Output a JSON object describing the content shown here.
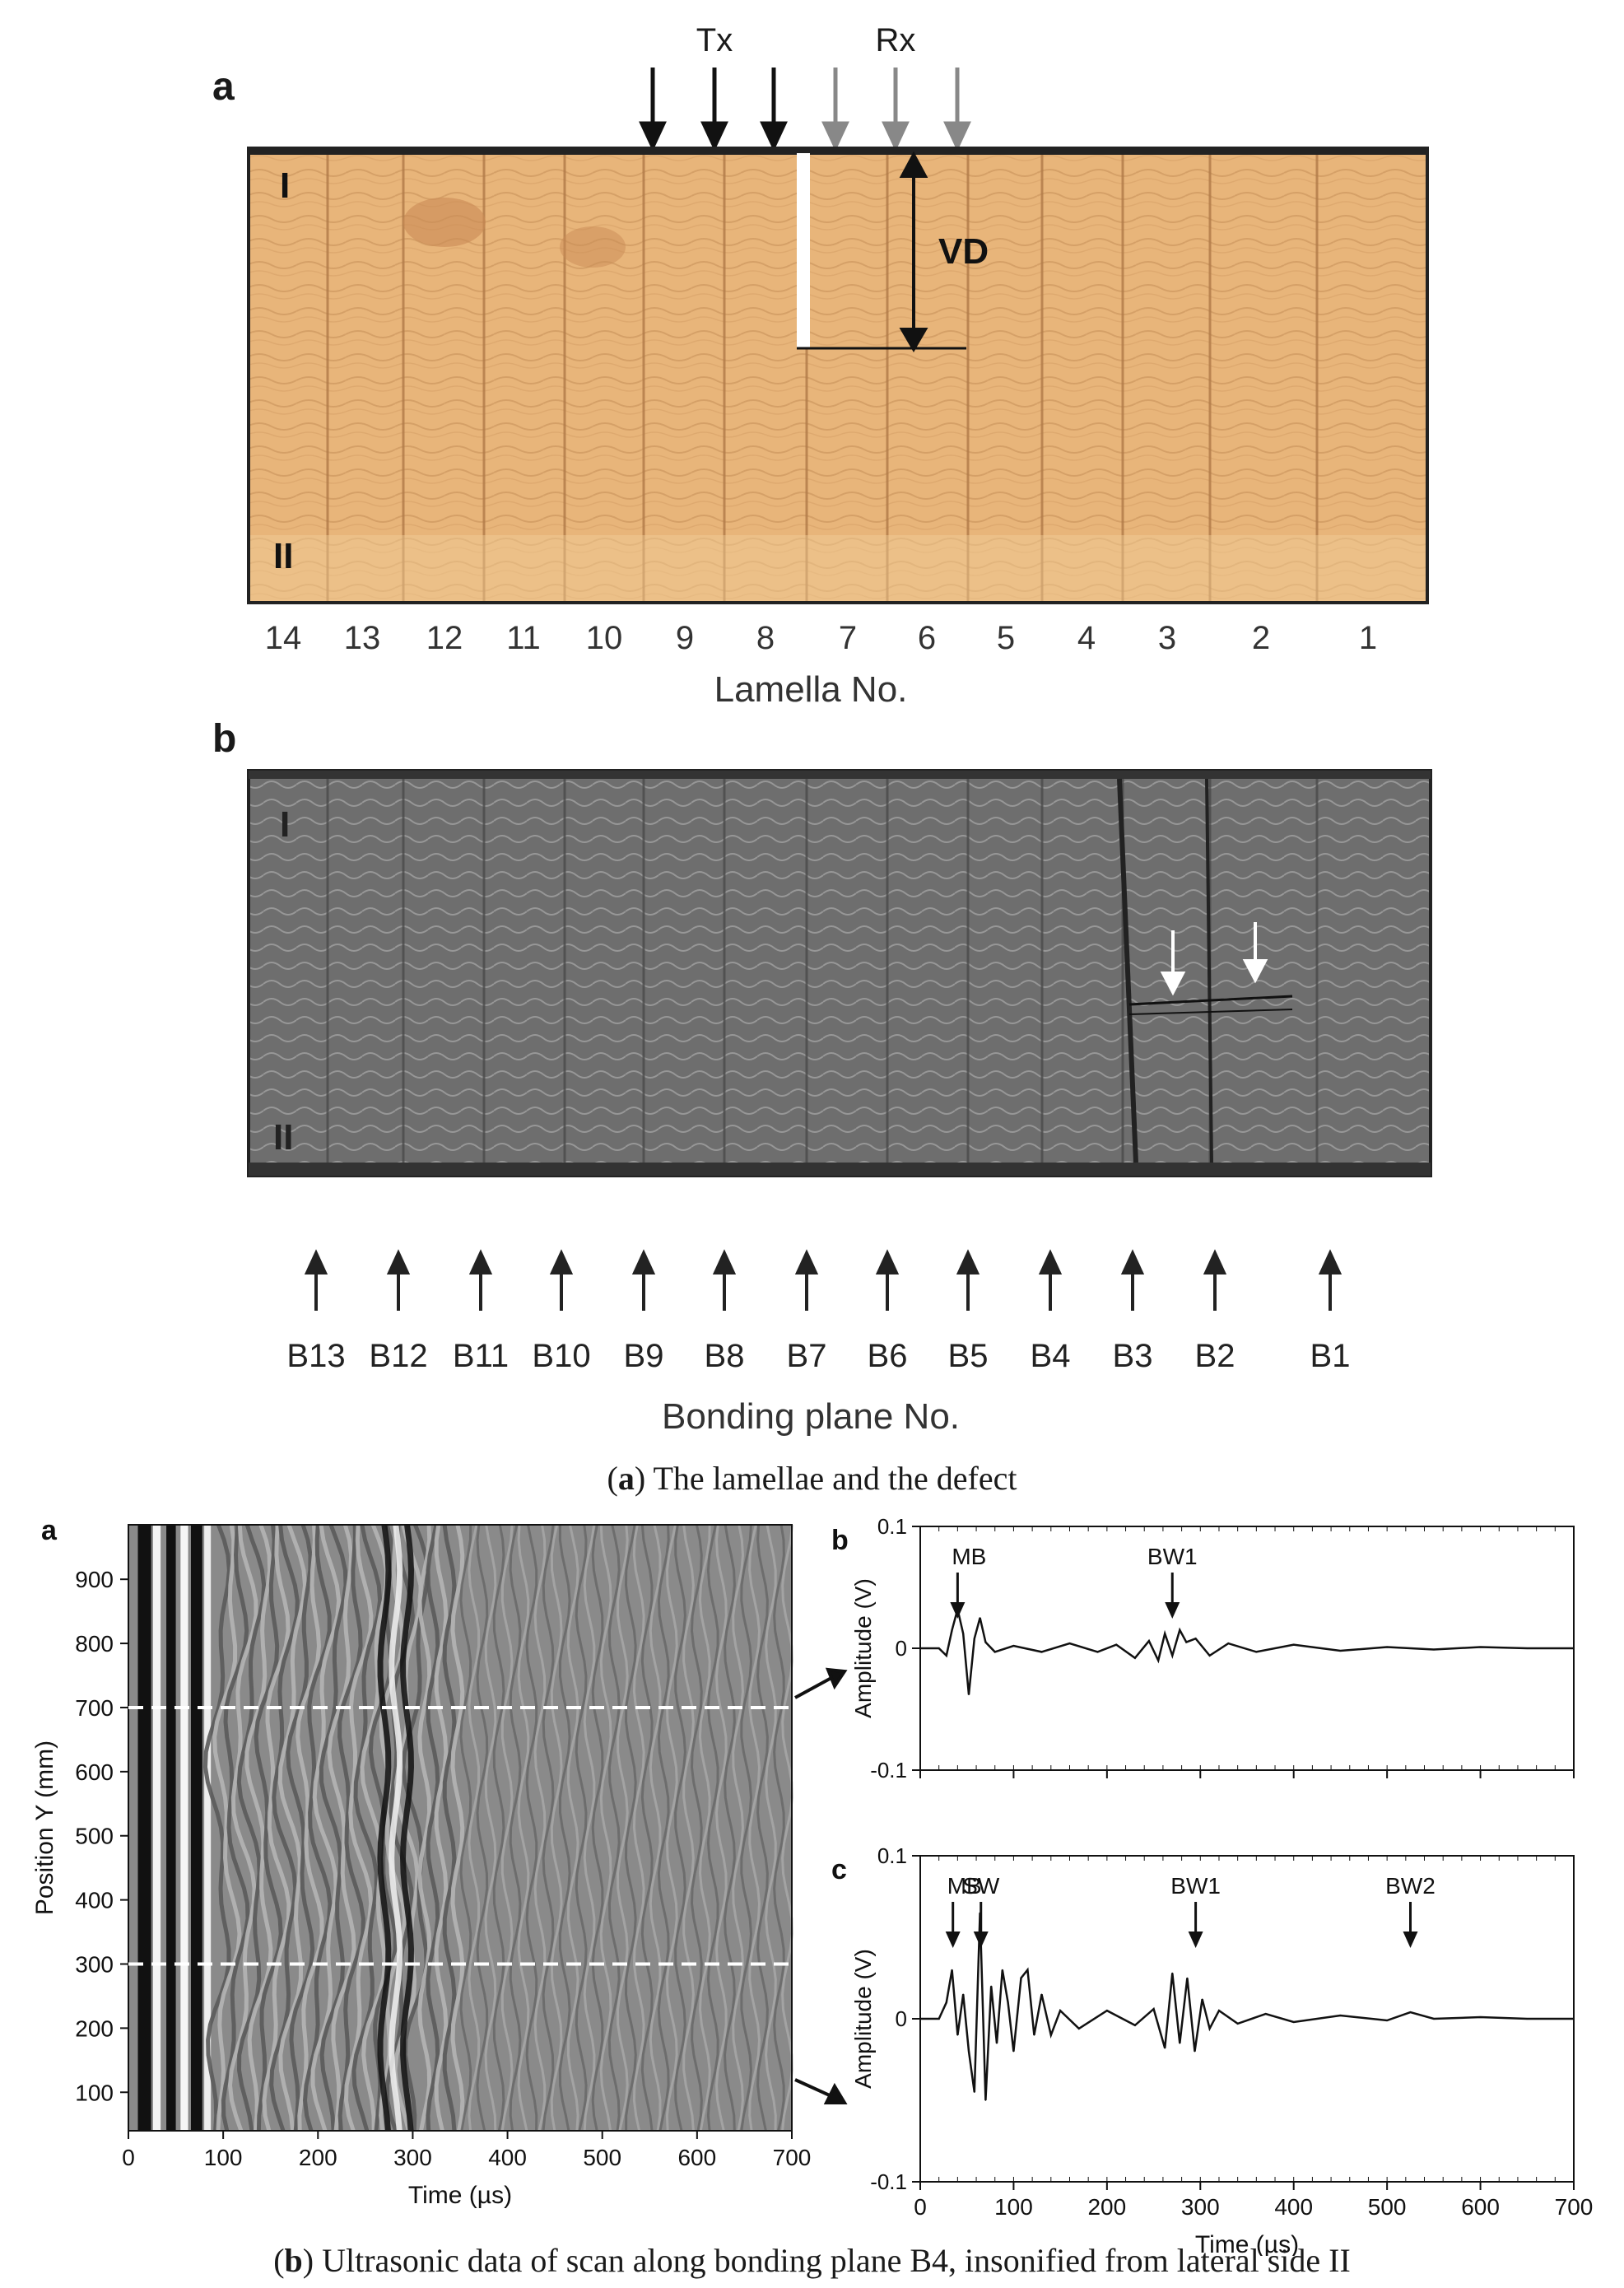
{
  "figure_a": {
    "panel_a_letter": "a",
    "panel_b_letter": "b",
    "tx_label": "Tx",
    "rx_label": "Rx",
    "vd_label": "VD",
    "side_I": "I",
    "side_II": "II",
    "lamella_numbers": [
      "14",
      "13",
      "12",
      "11",
      "10",
      "9",
      "8",
      "7",
      "6",
      "5",
      "4",
      "3",
      "2",
      "1"
    ],
    "lamella_axis_title": "Lamella No.",
    "bonding_planes": [
      "B13",
      "B12",
      "B11",
      "B10",
      "B9",
      "B8",
      "B7",
      "B6",
      "B5",
      "B4",
      "B3",
      "B2",
      "B1"
    ],
    "bonding_axis_title": "Bonding plane No.",
    "caption_letter": "a",
    "caption_text": " The lamellae and the defect",
    "colors": {
      "wood": "#e8b57a",
      "ct_gray": "#7d7d7d",
      "defect": "#ffffff"
    }
  },
  "figure_b": {
    "caption_letter": "b",
    "caption_text": " Ultrasonic data of scan along bonding plane B4, insonified from lateral side II",
    "panel_a_letter": "a",
    "panel_b_letter": "b",
    "panel_c_letter": "c"
  },
  "chart_data": [
    {
      "type": "heatmap",
      "title": "",
      "xlabel": "Time (µs)",
      "ylabel": "Position Y (mm)",
      "xlim": [
        0,
        700
      ],
      "ylim": [
        40,
        985
      ],
      "xticks": [
        "0",
        "100",
        "200",
        "300",
        "400",
        "500",
        "600",
        "700"
      ],
      "yticks": [
        "100",
        "200",
        "300",
        "400",
        "500",
        "600",
        "700",
        "800",
        "900"
      ],
      "dashed_lines_y": [
        700,
        300
      ]
    },
    {
      "type": "line",
      "title": "",
      "xlabel": "Time (µs)",
      "ylabel": "Amplitude (V)",
      "xlim": [
        0,
        700
      ],
      "ylim": [
        -0.1,
        0.1
      ],
      "xticks": [
        "0",
        "100",
        "200",
        "300",
        "400",
        "500",
        "600",
        "700"
      ],
      "yticks": [
        "0.1",
        "0",
        "-0.1"
      ],
      "annotations": [
        {
          "label": "MB",
          "x": 40
        },
        {
          "label": "BW1",
          "x": 270
        }
      ],
      "series": [
        {
          "x": [
            0,
            20,
            28,
            34,
            40,
            46,
            52,
            58,
            64,
            70,
            80,
            100,
            130,
            160,
            190,
            210,
            230,
            245,
            255,
            262,
            270,
            278,
            285,
            295,
            310,
            330,
            360,
            400,
            450,
            500,
            550,
            600,
            650,
            700
          ],
          "y": [
            0,
            0,
            -0.006,
            0.015,
            0.032,
            0.012,
            -0.038,
            0.008,
            0.025,
            0.005,
            -0.003,
            0.002,
            -0.003,
            0.004,
            -0.003,
            0.003,
            -0.008,
            0.006,
            -0.01,
            0.012,
            -0.006,
            0.015,
            0.005,
            0.008,
            -0.006,
            0.004,
            -0.003,
            0.003,
            -0.002,
            0.001,
            -0.001,
            0.001,
            0,
            0
          ]
        }
      ]
    },
    {
      "type": "line",
      "title": "",
      "xlabel": "Time (µs)",
      "ylabel": "Amplitude (V)",
      "xlim": [
        0,
        700
      ],
      "ylim": [
        -0.1,
        0.1
      ],
      "xticks": [
        "0",
        "100",
        "200",
        "300",
        "400",
        "500",
        "600",
        "700"
      ],
      "yticks": [
        "0.1",
        "0",
        "-0.1"
      ],
      "annotations": [
        {
          "label": "MB",
          "x": 35
        },
        {
          "label": "SW",
          "x": 65
        },
        {
          "label": "BW1",
          "x": 295
        },
        {
          "label": "BW2",
          "x": 525
        }
      ],
      "series": [
        {
          "x": [
            0,
            20,
            28,
            34,
            40,
            46,
            52,
            58,
            64,
            70,
            76,
            82,
            88,
            94,
            100,
            108,
            115,
            122,
            130,
            140,
            150,
            170,
            200,
            230,
            250,
            262,
            270,
            278,
            286,
            294,
            302,
            310,
            320,
            340,
            370,
            400,
            450,
            500,
            525,
            550,
            600,
            650,
            700
          ],
          "y": [
            0,
            0,
            0.01,
            0.03,
            -0.01,
            0.015,
            -0.02,
            -0.045,
            0.065,
            -0.05,
            0.02,
            -0.015,
            0.03,
            0.01,
            -0.02,
            0.025,
            0.03,
            -0.01,
            0.015,
            -0.01,
            0.005,
            -0.006,
            0.005,
            -0.004,
            0.006,
            -0.018,
            0.028,
            -0.015,
            0.025,
            -0.02,
            0.012,
            -0.006,
            0.005,
            -0.003,
            0.003,
            -0.002,
            0.002,
            -0.001,
            0.004,
            0,
            0.001,
            0,
            0
          ]
        }
      ]
    }
  ]
}
